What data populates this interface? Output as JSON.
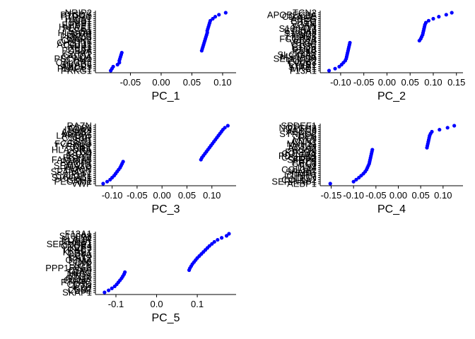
{
  "chart_data": [
    {
      "type": "scatter",
      "xlabel": "PC_1",
      "xlim": [
        -0.1,
        0.115
      ],
      "xticks": [
        -0.05,
        0.0,
        0.05,
        0.1
      ],
      "xtick_labels": [
        "-0.05",
        "0.00",
        "0.05",
        "0.10"
      ],
      "color": "#0000ff",
      "genes": [
        "PRKG1",
        "PLAGL1",
        "ABCB5",
        "SMAD6",
        "CALCRL",
        "TFPI",
        "PECAM1",
        "CALCA",
        "GATA2",
        "KIT",
        "PDE3A",
        "ZEB2",
        "NRP1",
        "ACOT11",
        "CHST15",
        "CAPN2",
        "MAP2",
        "PRKCB",
        "LRMP",
        "HLA-DR",
        "ESR1",
        "PLCE1",
        "HUWE1",
        "EHBP1",
        "SPP1",
        "ITGB1",
        "F10A1",
        "PTPRC",
        "PTGDS",
        "NRIP2"
      ],
      "genes_visible": [
        "PRKG1",
        "SMAD6",
        "CALCRL",
        "ACOT11",
        "CAPN2",
        "LRMP",
        "HLA-DR",
        "EHBP1",
        "F10A1"
      ],
      "x": [
        -0.082,
        -0.08,
        -0.078,
        -0.071,
        -0.068,
        -0.068,
        -0.067,
        -0.066,
        -0.065,
        -0.064,
        0.066,
        0.067,
        0.068,
        0.069,
        0.07,
        0.071,
        0.072,
        0.073,
        0.074,
        0.075,
        0.075,
        0.076,
        0.077,
        0.078,
        0.079,
        0.08,
        0.084,
        0.088,
        0.094,
        0.105
      ]
    },
    {
      "type": "scatter",
      "xlabel": "PC_2",
      "xlim": [
        -0.135,
        0.155
      ],
      "xticks": [
        -0.1,
        -0.05,
        0.0,
        0.05,
        0.1,
        0.15
      ],
      "xtick_labels": [
        "-0.10",
        "-0.05",
        "0.00",
        "0.05",
        "0.10",
        "0.15"
      ],
      "color": "#0000ff",
      "genes": [
        "F13A1",
        "MRC1",
        "STAB1",
        "LYVE1",
        "CD163",
        "FOLR2",
        "SELENOP",
        "MS4A6A",
        "SLC40A1",
        "F13B",
        "PDK4",
        "C1QA",
        "C1QB",
        "C1QC",
        "VSIG4",
        "CD14",
        "FCGR3A",
        "LILRB5",
        "TGM2",
        "S100A8",
        "S100A9",
        "S100A12",
        "FCN1",
        "VCAN",
        "LYZ",
        "EREG",
        "AREG",
        "CD300E",
        "APOBEC3A",
        "TCN2"
      ],
      "genes_visible": [
        "F13A1",
        "SLC40A1",
        "PDK4",
        "APOBEC3A",
        "TCN2"
      ],
      "x": [
        -0.125,
        -0.112,
        -0.103,
        -0.098,
        -0.094,
        -0.09,
        -0.088,
        -0.087,
        -0.086,
        -0.085,
        -0.084,
        -0.083,
        -0.082,
        -0.081,
        -0.08,
        0.07,
        0.073,
        0.075,
        0.077,
        0.078,
        0.079,
        0.08,
        0.081,
        0.082,
        0.084,
        0.09,
        0.1,
        0.112,
        0.128,
        0.14
      ]
    },
    {
      "type": "scatter",
      "xlabel": "PC_3",
      "xlim": [
        -0.125,
        0.14
      ],
      "xticks": [
        -0.1,
        -0.05,
        0.0,
        0.05,
        0.1
      ],
      "xtick_labels": [
        "-0.10",
        "-0.05",
        "0.00",
        "0.05",
        "0.10"
      ],
      "color": "#0000ff",
      "genes": [
        "VWF",
        "PECAM1",
        "CDH5",
        "ST6GAL1",
        "CALCRL",
        "FLT1",
        "SPARCL1",
        "EMCN",
        "PLVAP",
        "SEMA3G",
        "AQP1",
        "RAMP2",
        "FAM167B",
        "EGFL7",
        "ESAM",
        "CD74",
        "CYBB",
        "HLA-DRA",
        "AIF1",
        "TYROBP",
        "FCER1G",
        "LST1",
        "SPI1",
        "CSF1R",
        "LAPTM5",
        "MS4A7",
        "ADRB2",
        "ITGAX",
        "CD86",
        "RAZN"
      ],
      "genes_visible": [
        "VWF",
        "ST6GAL1",
        "FAM167B",
        "CYBB",
        "ADRB2",
        "RAZN"
      ],
      "x": [
        -0.118,
        -0.11,
        -0.104,
        -0.1,
        -0.096,
        -0.093,
        -0.09,
        -0.087,
        -0.084,
        -0.082,
        -0.08,
        -0.078,
        0.078,
        0.08,
        0.083,
        0.086,
        0.089,
        0.092,
        0.095,
        0.098,
        0.101,
        0.104,
        0.107,
        0.11,
        0.113,
        0.116,
        0.119,
        0.122,
        0.126,
        0.132
      ]
    },
    {
      "type": "scatter",
      "xlabel": "PC_4",
      "xlim": [
        -0.165,
        0.135
      ],
      "xticks": [
        -0.15,
        -0.1,
        -0.05,
        0.0,
        0.05,
        0.1
      ],
      "xtick_labels": [
        "-0.15",
        "-0.10",
        "-0.05",
        "0.00",
        "0.05",
        "0.10"
      ],
      "color": "#0000ff",
      "genes": [
        "AEBP1",
        "SERPINF1",
        "COL1A2",
        "DCN",
        "IGFBP7",
        "TIMP1",
        "SPARC",
        "COL3A1",
        "LUM",
        "FN1",
        "GPC3",
        "FRZB",
        "SFRP4",
        "COL6A3",
        "PDGFRB",
        "COL1A1",
        "PTGDS",
        "RGS5",
        "ACTA2",
        "TAGLN",
        "MYH11",
        "CNN1",
        "MYL9",
        "PLN",
        "DES",
        "SYNPO2",
        "ABCC9",
        "KCNJ8",
        "NOTCH3",
        "SPDEF1"
      ],
      "genes_visible": [
        "AEBP1",
        "SERPINF1",
        "FRZB",
        "SPDEF1"
      ],
      "x": [
        -0.152,
        -0.1,
        -0.094,
        -0.088,
        -0.083,
        -0.078,
        -0.074,
        -0.071,
        -0.069,
        -0.067,
        -0.065,
        -0.064,
        -0.063,
        -0.062,
        -0.061,
        -0.06,
        -0.059,
        -0.058,
        0.064,
        0.065,
        0.066,
        0.067,
        0.068,
        0.069,
        0.07,
        0.072,
        0.075,
        0.092,
        0.11,
        0.125
      ]
    },
    {
      "type": "scatter",
      "xlabel": "PC_5",
      "xlim": [
        -0.14,
        0.185
      ],
      "xticks": [
        -0.1,
        0.0,
        0.1
      ],
      "xtick_labels": [
        "-0.1",
        "0.0",
        "0.1"
      ],
      "color": "#0000ff",
      "genes": [
        "SKAP1",
        "CD3E",
        "CD2",
        "IL7R",
        "CD3D",
        "PTPRC",
        "CD247",
        "GZMK",
        "CCL5",
        "NKG7",
        "TRAC",
        "CD69",
        "PPP1R16B",
        "LCK",
        "ITK",
        "CD96",
        "GZMA",
        "CST7",
        "CCL4",
        "CD8A",
        "KLRB1",
        "TRBC2",
        "IKZF3",
        "CXCR4",
        "SERPINE1",
        "THBS1",
        "PLAUR",
        "LYZ",
        "S100A8",
        "F13A1"
      ],
      "genes_visible": [
        "SKAP1",
        "PPP1R16B",
        "SERPINE1",
        "F13A1"
      ],
      "x": [
        -0.128,
        -0.118,
        -0.11,
        -0.103,
        -0.098,
        -0.094,
        -0.09,
        -0.086,
        -0.083,
        -0.08,
        -0.078,
        0.08,
        0.082,
        0.085,
        0.088,
        0.092,
        0.096,
        0.1,
        0.105,
        0.11,
        0.115,
        0.12,
        0.125,
        0.13,
        0.136,
        0.142,
        0.15,
        0.16,
        0.172,
        0.178
      ]
    }
  ]
}
